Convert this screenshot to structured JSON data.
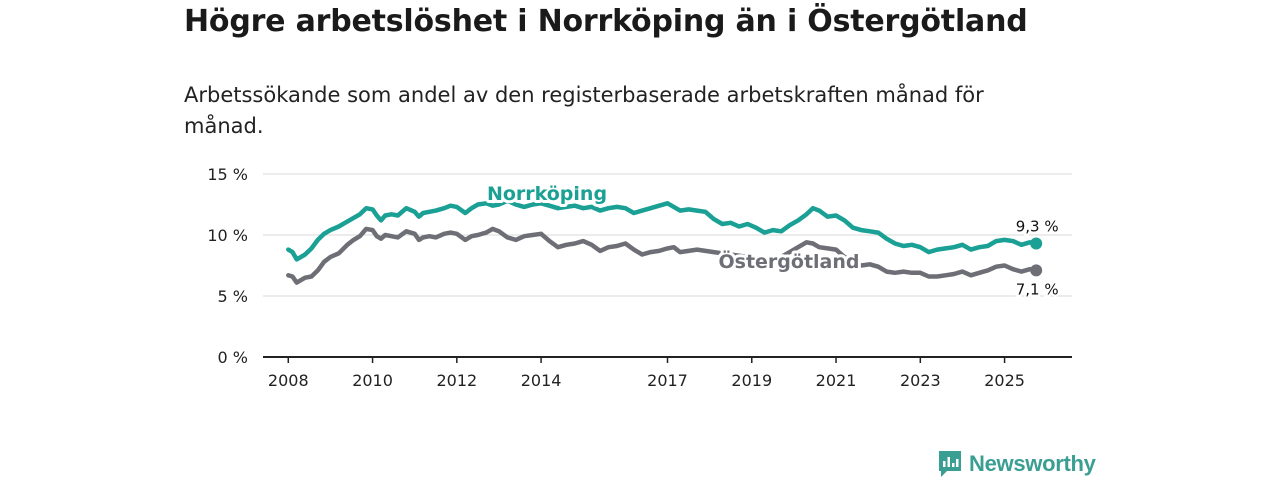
{
  "title": "Högre arbetslöshet i Norrköping än i Östergötland",
  "subtitle": "Arbetssökande som andel av den registerbaserade arbetskraften månad för månad.",
  "brand": {
    "name": "Newsworthy",
    "icon": "newsworthy-logo-icon",
    "color": "#3a9e93"
  },
  "chart_data": {
    "type": "line",
    "title": "",
    "xlabel": "",
    "ylabel": "",
    "xlim": [
      2007.4,
      2026.6
    ],
    "ylim": [
      0,
      15
    ],
    "yticks": [
      0,
      5,
      10,
      15
    ],
    "ytick_labels": [
      "0 %",
      "5 %",
      "10 %",
      "15 %"
    ],
    "xticks": [
      2008,
      2010,
      2012,
      2014,
      2017,
      2019,
      2021,
      2023,
      2025
    ],
    "xtick_labels": [
      "2008",
      "2010",
      "2012",
      "2014",
      "2017",
      "2019",
      "2021",
      "2023",
      "2025"
    ],
    "grid": true,
    "series": [
      {
        "name": "Norrköping",
        "color": "#1aa094",
        "end_label": "9,3 %",
        "x": [
          2008.0,
          2008.1,
          2008.2,
          2008.4,
          2008.55,
          2008.7,
          2008.85,
          2009.0,
          2009.2,
          2009.4,
          2009.55,
          2009.7,
          2009.85,
          2010.0,
          2010.1,
          2010.2,
          2010.3,
          2010.45,
          2010.6,
          2010.8,
          2011.0,
          2011.1,
          2011.2,
          2011.35,
          2011.5,
          2011.7,
          2011.85,
          2012.0,
          2012.2,
          2012.35,
          2012.5,
          2012.7,
          2012.85,
          2013.0,
          2013.2,
          2013.4,
          2013.6,
          2013.8,
          2014.0,
          2014.2,
          2014.4,
          2014.6,
          2014.8,
          2015.0,
          2015.2,
          2015.4,
          2015.6,
          2015.8,
          2016.0,
          2016.2,
          2016.4,
          2016.6,
          2016.8,
          2017.0,
          2017.15,
          2017.3,
          2017.5,
          2017.7,
          2017.9,
          2018.1,
          2018.3,
          2018.5,
          2018.7,
          2018.9,
          2019.1,
          2019.3,
          2019.5,
          2019.7,
          2019.9,
          2020.1,
          2020.3,
          2020.45,
          2020.6,
          2020.8,
          2021.0,
          2021.2,
          2021.4,
          2021.6,
          2021.8,
          2022.0,
          2022.2,
          2022.4,
          2022.6,
          2022.8,
          2023.0,
          2023.2,
          2023.4,
          2023.6,
          2023.8,
          2024.0,
          2024.2,
          2024.4,
          2024.6,
          2024.8,
          2025.0,
          2025.2,
          2025.4,
          2025.6,
          2025.75
        ],
        "y": [
          8.8,
          8.6,
          8.0,
          8.4,
          8.9,
          9.6,
          10.1,
          10.4,
          10.7,
          11.1,
          11.4,
          11.7,
          12.2,
          12.1,
          11.6,
          11.2,
          11.6,
          11.7,
          11.6,
          12.2,
          11.9,
          11.5,
          11.8,
          11.9,
          12.0,
          12.2,
          12.4,
          12.3,
          11.8,
          12.2,
          12.5,
          12.6,
          12.4,
          12.5,
          12.8,
          12.5,
          12.3,
          12.5,
          12.6,
          12.4,
          12.2,
          12.3,
          12.4,
          12.2,
          12.3,
          12.0,
          12.2,
          12.3,
          12.2,
          11.8,
          12.0,
          12.2,
          12.4,
          12.6,
          12.3,
          12.0,
          12.1,
          12.0,
          11.9,
          11.3,
          10.9,
          11.0,
          10.7,
          10.9,
          10.6,
          10.2,
          10.4,
          10.3,
          10.8,
          11.2,
          11.7,
          12.2,
          12.0,
          11.5,
          11.6,
          11.2,
          10.6,
          10.4,
          10.3,
          10.2,
          9.7,
          9.3,
          9.1,
          9.2,
          9.0,
          8.6,
          8.8,
          8.9,
          9.0,
          9.2,
          8.8,
          9.0,
          9.1,
          9.5,
          9.6,
          9.5,
          9.2,
          9.4,
          9.3
        ]
      },
      {
        "name": "Östergötland",
        "color": "#6e6e76",
        "end_label": "7,1 %",
        "x": [
          2008.0,
          2008.1,
          2008.2,
          2008.4,
          2008.55,
          2008.7,
          2008.85,
          2009.0,
          2009.2,
          2009.4,
          2009.55,
          2009.7,
          2009.85,
          2010.0,
          2010.1,
          2010.2,
          2010.3,
          2010.45,
          2010.6,
          2010.8,
          2011.0,
          2011.1,
          2011.2,
          2011.35,
          2011.5,
          2011.7,
          2011.85,
          2012.0,
          2012.2,
          2012.35,
          2012.5,
          2012.7,
          2012.85,
          2013.0,
          2013.2,
          2013.4,
          2013.6,
          2013.8,
          2014.0,
          2014.2,
          2014.4,
          2014.6,
          2014.8,
          2015.0,
          2015.2,
          2015.4,
          2015.6,
          2015.8,
          2016.0,
          2016.2,
          2016.4,
          2016.6,
          2016.8,
          2017.0,
          2017.15,
          2017.3,
          2017.5,
          2017.7,
          2017.9,
          2018.1,
          2018.3,
          2018.5,
          2018.7,
          2018.9,
          2019.1,
          2019.3,
          2019.5,
          2019.7,
          2019.9,
          2020.1,
          2020.3,
          2020.45,
          2020.6,
          2020.8,
          2021.0,
          2021.2,
          2021.4,
          2021.6,
          2021.8,
          2022.0,
          2022.2,
          2022.4,
          2022.6,
          2022.8,
          2023.0,
          2023.2,
          2023.4,
          2023.6,
          2023.8,
          2024.0,
          2024.2,
          2024.4,
          2024.6,
          2024.8,
          2025.0,
          2025.2,
          2025.4,
          2025.6,
          2025.75
        ],
        "y": [
          6.7,
          6.6,
          6.1,
          6.5,
          6.6,
          7.1,
          7.8,
          8.2,
          8.5,
          9.2,
          9.6,
          9.9,
          10.5,
          10.4,
          9.9,
          9.7,
          10.0,
          9.9,
          9.8,
          10.3,
          10.1,
          9.6,
          9.8,
          9.9,
          9.8,
          10.1,
          10.2,
          10.1,
          9.6,
          9.9,
          10.0,
          10.2,
          10.5,
          10.3,
          9.8,
          9.6,
          9.9,
          10.0,
          10.1,
          9.5,
          9.0,
          9.2,
          9.3,
          9.5,
          9.2,
          8.7,
          9.0,
          9.1,
          9.3,
          8.8,
          8.4,
          8.6,
          8.7,
          8.9,
          9.0,
          8.6,
          8.7,
          8.8,
          8.7,
          8.6,
          8.5,
          8.4,
          8.3,
          8.2,
          8.1,
          7.9,
          8.0,
          8.2,
          8.6,
          9.0,
          9.4,
          9.3,
          9.0,
          8.9,
          8.8,
          8.2,
          7.8,
          7.5,
          7.6,
          7.4,
          7.0,
          6.9,
          7.0,
          6.9,
          6.9,
          6.6,
          6.6,
          6.7,
          6.8,
          7.0,
          6.7,
          6.9,
          7.1,
          7.4,
          7.5,
          7.2,
          7.0,
          7.2,
          7.1
        ]
      }
    ]
  }
}
